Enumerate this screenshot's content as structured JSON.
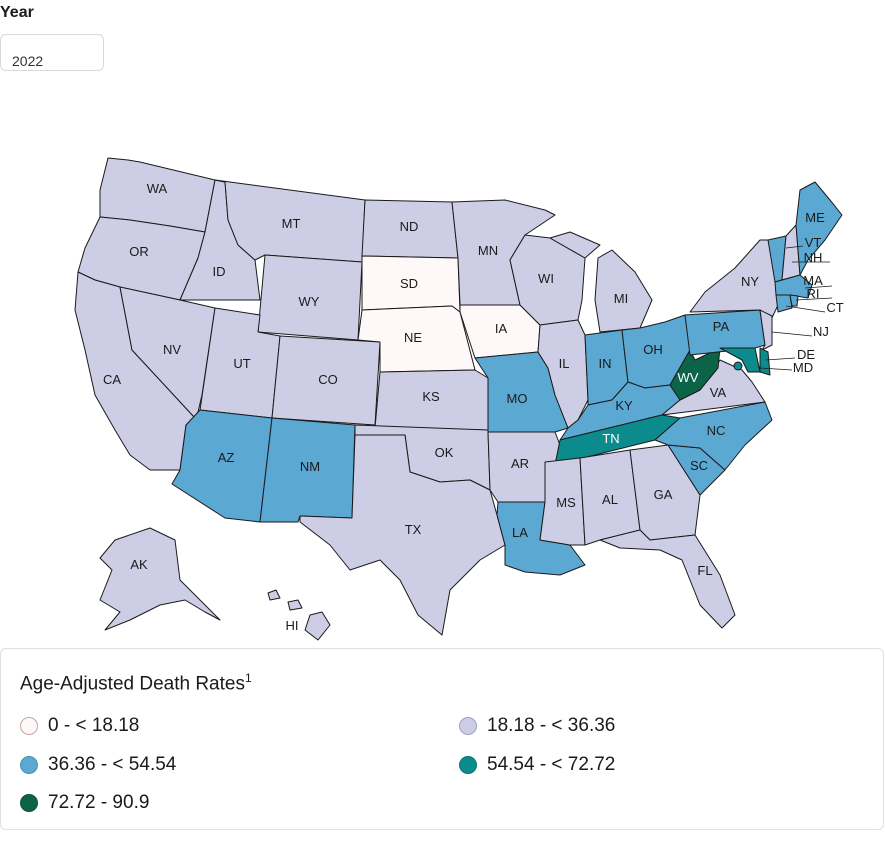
{
  "filter": {
    "label": "Year",
    "selected": "2022"
  },
  "legend": {
    "title": "Age-Adjusted Death Rates",
    "footnote": "1",
    "bins": [
      {
        "label": "0 - < 18.18",
        "color": "#fff8f8",
        "border": "#c9a3a3"
      },
      {
        "label": "18.18 - < 36.36",
        "color": "#cdcee5",
        "border": "#9fa2c4"
      },
      {
        "label": "36.36 - < 54.54",
        "color": "#5ba8d3",
        "border": "#4a8fb5"
      },
      {
        "label": "54.54 - < 72.72",
        "color": "#0c8b8c",
        "border": "#0a7373"
      },
      {
        "label": "72.72 - 90.9",
        "color": "#0c6448",
        "border": "#0a5139"
      }
    ]
  },
  "states": [
    {
      "abbr": "WA",
      "bin": 1
    },
    {
      "abbr": "OR",
      "bin": 1
    },
    {
      "abbr": "CA",
      "bin": 1
    },
    {
      "abbr": "ID",
      "bin": 1
    },
    {
      "abbr": "NV",
      "bin": 1
    },
    {
      "abbr": "MT",
      "bin": 1
    },
    {
      "abbr": "WY",
      "bin": 1
    },
    {
      "abbr": "UT",
      "bin": 1
    },
    {
      "abbr": "AZ",
      "bin": 2
    },
    {
      "abbr": "CO",
      "bin": 1
    },
    {
      "abbr": "NM",
      "bin": 2
    },
    {
      "abbr": "ND",
      "bin": 1
    },
    {
      "abbr": "SD",
      "bin": 0
    },
    {
      "abbr": "NE",
      "bin": 0
    },
    {
      "abbr": "KS",
      "bin": 1
    },
    {
      "abbr": "OK",
      "bin": 1
    },
    {
      "abbr": "TX",
      "bin": 1
    },
    {
      "abbr": "MN",
      "bin": 1
    },
    {
      "abbr": "IA",
      "bin": 0
    },
    {
      "abbr": "MO",
      "bin": 2
    },
    {
      "abbr": "AR",
      "bin": 1
    },
    {
      "abbr": "LA",
      "bin": 2
    },
    {
      "abbr": "WI",
      "bin": 1
    },
    {
      "abbr": "IL",
      "bin": 1
    },
    {
      "abbr": "MI",
      "bin": 1
    },
    {
      "abbr": "IN",
      "bin": 2
    },
    {
      "abbr": "OH",
      "bin": 2
    },
    {
      "abbr": "KY",
      "bin": 2
    },
    {
      "abbr": "TN",
      "bin": 3
    },
    {
      "abbr": "MS",
      "bin": 1
    },
    {
      "abbr": "AL",
      "bin": 1
    },
    {
      "abbr": "GA",
      "bin": 1
    },
    {
      "abbr": "FL",
      "bin": 1
    },
    {
      "abbr": "SC",
      "bin": 2
    },
    {
      "abbr": "NC",
      "bin": 2
    },
    {
      "abbr": "VA",
      "bin": 1
    },
    {
      "abbr": "WV",
      "bin": 4
    },
    {
      "abbr": "PA",
      "bin": 2
    },
    {
      "abbr": "NY",
      "bin": 1
    },
    {
      "abbr": "ME",
      "bin": 2
    },
    {
      "abbr": "VT",
      "bin": 2
    },
    {
      "abbr": "NH",
      "bin": 1
    },
    {
      "abbr": "MA",
      "bin": 2
    },
    {
      "abbr": "RI",
      "bin": 2
    },
    {
      "abbr": "CT",
      "bin": 2
    },
    {
      "abbr": "NJ",
      "bin": 1
    },
    {
      "abbr": "DE",
      "bin": 3
    },
    {
      "abbr": "MD",
      "bin": 3
    },
    {
      "abbr": "DC",
      "bin": 3
    },
    {
      "abbr": "AK",
      "bin": 1
    },
    {
      "abbr": "HI",
      "bin": 1
    }
  ]
}
